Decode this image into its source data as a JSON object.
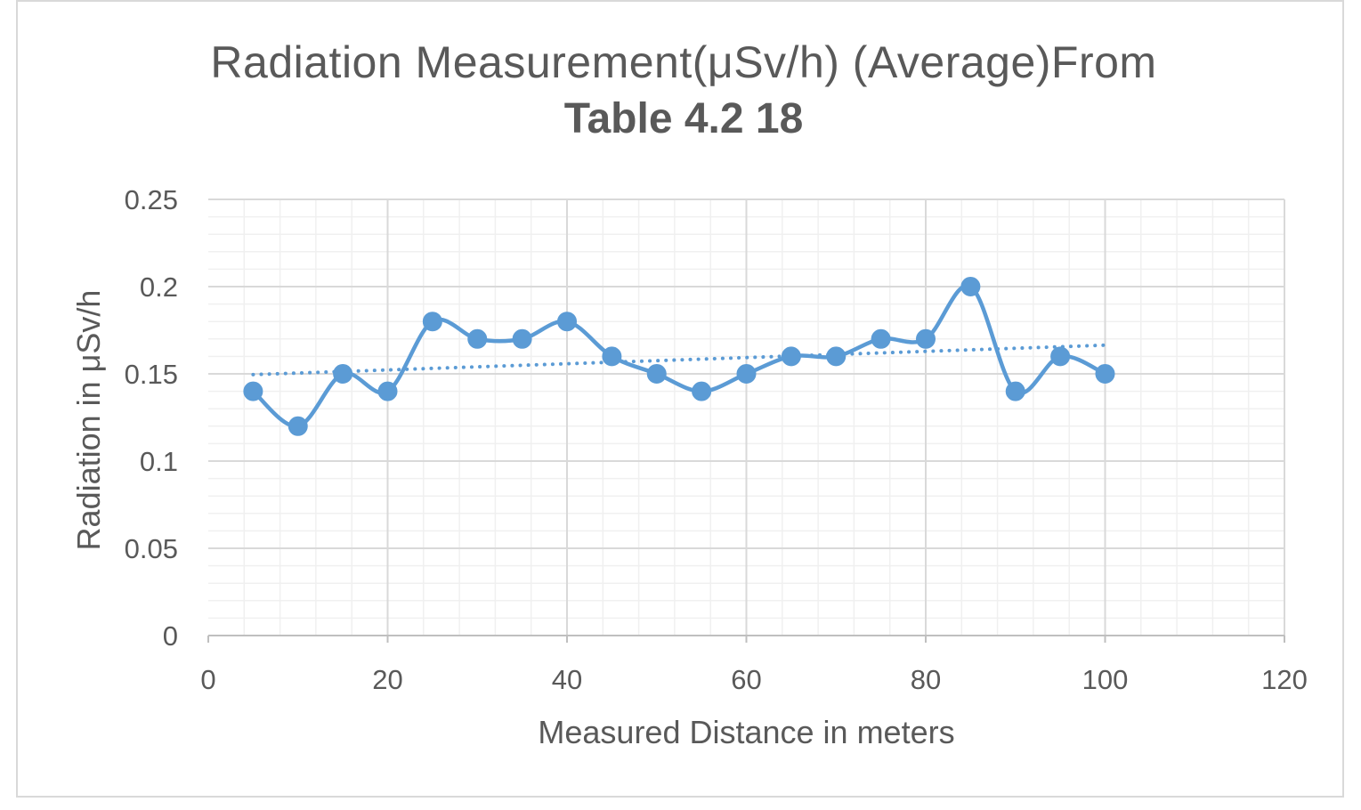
{
  "chart_data": {
    "type": "line",
    "title": "Radiation Measurement(μSv/h) (Average)From",
    "subtitle": "Table 4.2 18",
    "xlabel": "Measured Distance in meters",
    "ylabel": "Radiation in μSv/h",
    "xlim": [
      0,
      120
    ],
    "ylim": [
      0,
      0.25
    ],
    "x_ticks": [
      "0",
      "20",
      "40",
      "60",
      "80",
      "100",
      "120"
    ],
    "y_ticks": [
      "0",
      "0.05",
      "0.1",
      "0.15",
      "0.2",
      "0.25"
    ],
    "grid": true,
    "series": [
      {
        "x": [
          5,
          10,
          15,
          20,
          25,
          30,
          35,
          40,
          45,
          50,
          55,
          60,
          65,
          70,
          75,
          80,
          85,
          90,
          95,
          100
        ],
        "values": [
          0.14,
          0.12,
          0.15,
          0.14,
          0.18,
          0.17,
          0.17,
          0.18,
          0.16,
          0.15,
          0.14,
          0.15,
          0.16,
          0.16,
          0.17,
          0.17,
          0.2,
          0.14,
          0.16,
          0.15
        ],
        "color": "#5b9bd5",
        "smooth": true,
        "markers": true
      }
    ],
    "trendline": {
      "type": "linear",
      "style": "dotted",
      "color": "#5b9bd5",
      "x_range": [
        5,
        100
      ]
    }
  }
}
